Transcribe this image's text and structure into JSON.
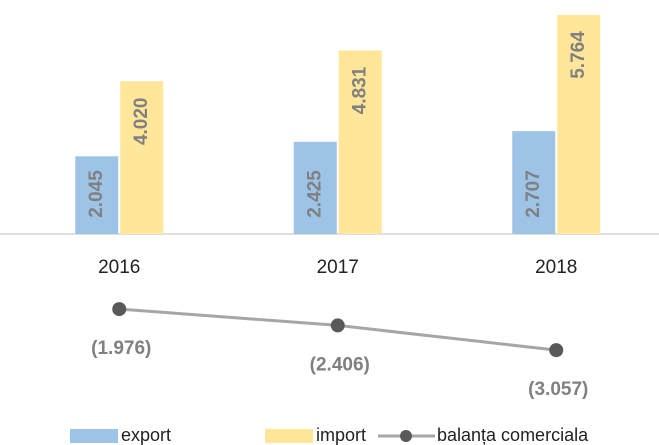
{
  "chart_data": {
    "type": "bar",
    "categories": [
      "2016",
      "2017",
      "2018"
    ],
    "series": [
      {
        "name": "export",
        "color": "#9dc3e6",
        "values": [
          2045,
          2425,
          2707
        ],
        "value_labels": [
          "2.045",
          "2.425",
          "2.707"
        ]
      },
      {
        "name": "import",
        "color": "#ffe699",
        "values": [
          4020,
          4831,
          5764
        ],
        "value_labels": [
          "4.020",
          "4.831",
          "5.764"
        ]
      },
      {
        "name": "balanța comerciala",
        "type": "line",
        "color": "#a6a6a6",
        "marker_color": "#595959",
        "values": [
          -1976,
          -2406,
          -3057
        ],
        "value_labels": [
          "(1.976)",
          "(2.406)",
          "(3.057)"
        ]
      }
    ]
  }
}
